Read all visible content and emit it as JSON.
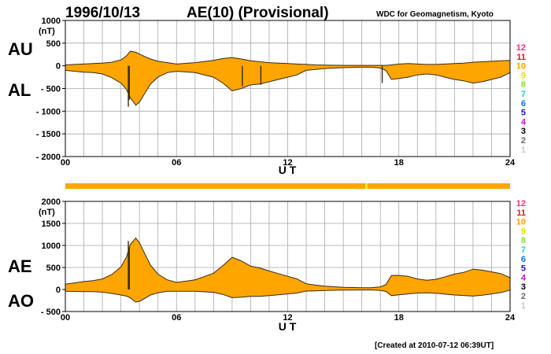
{
  "header": {
    "date": "1996/10/13",
    "title": "AE(10) (Provisional)",
    "source": "WDC for Geomagnetism, Kyoto"
  },
  "footer": {
    "created": "[Created at 2010-07-12 06:39UT]"
  },
  "colors": {
    "fill": "#ffa500",
    "line": "#3a2a10",
    "grid": "#a8a8a8",
    "bar": "#ffa500",
    "bar_marker": "#e0e830"
  },
  "station_scale": [
    {
      "label": "12",
      "color": "#ff2a8a"
    },
    {
      "label": "11",
      "color": "#e8121e"
    },
    {
      "label": "10",
      "color": "#ffa000"
    },
    {
      "label": "9",
      "color": "#e0e000"
    },
    {
      "label": "8",
      "color": "#80e030"
    },
    {
      "label": "7",
      "color": "#20d0d0"
    },
    {
      "label": "6",
      "color": "#1070ff"
    },
    {
      "label": "5",
      "color": "#2010c0"
    },
    {
      "label": "4",
      "color": "#d010d0"
    },
    {
      "label": "3",
      "color": "#000000"
    },
    {
      "label": "2",
      "color": "#6a6a6a"
    },
    {
      "label": "1",
      "color": "#c8c8c8"
    }
  ],
  "chart_data": [
    {
      "type": "area",
      "xlabel": "U T",
      "ylabel": "(nT)",
      "xlim": [
        0,
        24
      ],
      "ylim": [
        -2000,
        1000
      ],
      "xticks": [
        0,
        6,
        12,
        18,
        24
      ],
      "xtick_labels": [
        "00",
        "06",
        "12",
        "18",
        "24"
      ],
      "yticks": [
        1000,
        500,
        0,
        -500,
        -1000,
        -1500,
        -2000
      ],
      "ytick_labels": [
        "1000",
        "500",
        "0",
        "- 500",
        "- 1000",
        "- 1500",
        "- 2000"
      ],
      "grid": true,
      "upper_series_label": "AU",
      "lower_series_label": "AL",
      "x": [
        0,
        0.5,
        1,
        1.5,
        2,
        2.5,
        3,
        3.3,
        3.5,
        3.8,
        4,
        4.3,
        4.6,
        5,
        5.5,
        6,
        7,
        8,
        8.5,
        9,
        9.5,
        10,
        10.5,
        11,
        11.5,
        12,
        12.5,
        13,
        13.5,
        14,
        15,
        16,
        16.5,
        17,
        17.3,
        17.6,
        18,
        18.5,
        19,
        19.5,
        20,
        20.5,
        21,
        21.5,
        22,
        22.5,
        23,
        23.5,
        24
      ],
      "series": [
        {
          "name": "AU",
          "values": [
            20,
            30,
            40,
            50,
            60,
            80,
            130,
            220,
            320,
            300,
            260,
            200,
            150,
            100,
            70,
            40,
            70,
            120,
            160,
            180,
            150,
            110,
            90,
            70,
            60,
            50,
            40,
            30,
            20,
            15,
            10,
            10,
            10,
            10,
            10,
            20,
            40,
            50,
            40,
            30,
            30,
            40,
            50,
            60,
            80,
            90,
            100,
            110,
            120
          ]
        },
        {
          "name": "AL",
          "values": [
            -100,
            -120,
            -140,
            -150,
            -180,
            -260,
            -380,
            -520,
            -700,
            -870,
            -800,
            -600,
            -400,
            -250,
            -150,
            -120,
            -150,
            -250,
            -380,
            -550,
            -500,
            -420,
            -400,
            -350,
            -300,
            -250,
            -200,
            -100,
            -80,
            -60,
            -40,
            -30,
            -30,
            -50,
            -100,
            -300,
            -280,
            -250,
            -200,
            -180,
            -200,
            -250,
            -300,
            -330,
            -380,
            -350,
            -300,
            -250,
            -150
          ]
        }
      ],
      "spikes": [
        {
          "x": 3.4,
          "y": -900
        },
        {
          "x": 3.45,
          "y": -750
        },
        {
          "x": 9.55,
          "y": -450
        },
        {
          "x": 10.55,
          "y": -420
        },
        {
          "x": 17.1,
          "y": -380
        }
      ]
    },
    {
      "type": "area",
      "xlabel": "U T",
      "ylabel": "(nT)",
      "xlim": [
        0,
        24
      ],
      "ylim": [
        -500,
        2000
      ],
      "xticks": [
        0,
        6,
        12,
        18,
        24
      ],
      "xtick_labels": [
        "00",
        "06",
        "12",
        "18",
        "24"
      ],
      "yticks": [
        2000,
        1500,
        1000,
        500,
        0,
        -500
      ],
      "ytick_labels": [
        "2000",
        "1500",
        "1000",
        "500",
        "0",
        "- 500"
      ],
      "grid": true,
      "upper_series_label": "AE",
      "lower_series_label": "AO",
      "x": [
        0,
        0.5,
        1,
        1.5,
        2,
        2.5,
        3,
        3.3,
        3.5,
        3.8,
        4,
        4.3,
        4.6,
        5,
        5.5,
        6,
        7,
        8,
        8.5,
        9,
        9.5,
        10,
        10.5,
        11,
        11.5,
        12,
        12.5,
        13,
        13.5,
        14,
        15,
        16,
        16.5,
        17,
        17.3,
        17.6,
        18,
        18.5,
        19,
        19.5,
        20,
        20.5,
        21,
        21.5,
        22,
        22.5,
        23,
        23.5,
        24
      ],
      "series": [
        {
          "name": "AE",
          "values": [
            120,
            150,
            180,
            200,
            240,
            340,
            510,
            740,
            1020,
            1170,
            1060,
            800,
            550,
            350,
            220,
            160,
            220,
            370,
            540,
            730,
            650,
            530,
            490,
            420,
            360,
            300,
            240,
            130,
            100,
            75,
            50,
            40,
            40,
            60,
            110,
            320,
            320,
            300,
            240,
            210,
            230,
            290,
            350,
            390,
            460,
            440,
            400,
            360,
            270
          ]
        },
        {
          "name": "AO",
          "values": [
            -40,
            -45,
            -50,
            -50,
            -60,
            -90,
            -125,
            -150,
            -190,
            -285,
            -270,
            -200,
            -125,
            -75,
            -40,
            -40,
            -40,
            -65,
            -110,
            -185,
            -175,
            -155,
            -155,
            -140,
            -120,
            -100,
            -80,
            -35,
            -30,
            -22,
            -15,
            -10,
            -10,
            -20,
            -45,
            -140,
            -120,
            -100,
            -80,
            -75,
            -85,
            -105,
            -125,
            -135,
            -150,
            -130,
            -100,
            -70,
            -15
          ]
        }
      ],
      "spikes": [
        {
          "x": 3.4,
          "y": 1100
        },
        {
          "x": 3.45,
          "y": 960
        }
      ]
    }
  ]
}
